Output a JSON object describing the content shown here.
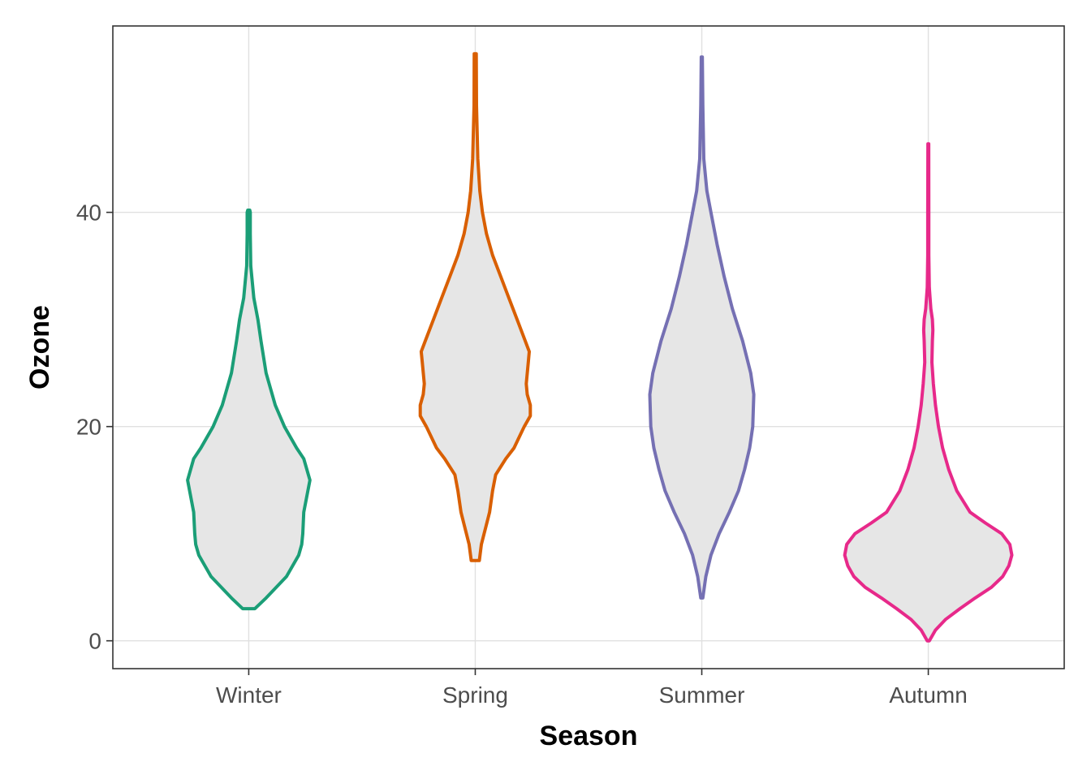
{
  "chart_data": {
    "type": "violin",
    "title": "",
    "xlabel": "Season",
    "ylabel": "Ozone",
    "categories": [
      "Winter",
      "Spring",
      "Summer",
      "Autumn"
    ],
    "ylim": [
      -2.6,
      57.4
    ],
    "yticks": [
      0,
      20,
      40
    ],
    "ytick_labels": [
      "0",
      "20",
      "40"
    ],
    "fill_color": "#e6e6e6",
    "series": [
      {
        "name": "Winter",
        "color": "#1b9e77",
        "min": 3,
        "max": 40.2,
        "profile": [
          [
            3,
            0.06
          ],
          [
            4,
            0.17
          ],
          [
            6,
            0.37
          ],
          [
            8,
            0.49
          ],
          [
            9,
            0.52
          ],
          [
            10,
            0.53
          ],
          [
            12,
            0.54
          ],
          [
            15,
            0.6
          ],
          [
            17,
            0.54
          ],
          [
            18,
            0.47
          ],
          [
            20,
            0.35
          ],
          [
            22,
            0.26
          ],
          [
            25,
            0.17
          ],
          [
            28,
            0.12
          ],
          [
            30,
            0.09
          ],
          [
            32,
            0.05
          ],
          [
            35,
            0.02
          ],
          [
            38,
            0.015
          ],
          [
            40,
            0.015
          ],
          [
            40.2,
            0.01
          ]
        ]
      },
      {
        "name": "Spring",
        "color": "#d95f02",
        "min": 7.5,
        "max": 54.8,
        "profile": [
          [
            7.5,
            0.04
          ],
          [
            9,
            0.06
          ],
          [
            12,
            0.14
          ],
          [
            14,
            0.17
          ],
          [
            15.5,
            0.2
          ],
          [
            17,
            0.3
          ],
          [
            18,
            0.38
          ],
          [
            20,
            0.48
          ],
          [
            21,
            0.54
          ],
          [
            22,
            0.54
          ],
          [
            23,
            0.51
          ],
          [
            24,
            0.5
          ],
          [
            26,
            0.52
          ],
          [
            27,
            0.53
          ],
          [
            28,
            0.49
          ],
          [
            30,
            0.41
          ],
          [
            32,
            0.33
          ],
          [
            34,
            0.25
          ],
          [
            36,
            0.17
          ],
          [
            38,
            0.11
          ],
          [
            40,
            0.07
          ],
          [
            42,
            0.045
          ],
          [
            45,
            0.025
          ],
          [
            50,
            0.012
          ],
          [
            54.8,
            0.01
          ]
        ]
      },
      {
        "name": "Summer",
        "color": "#7570b3",
        "min": 4,
        "max": 54.5,
        "profile": [
          [
            4,
            0.01
          ],
          [
            6,
            0.04
          ],
          [
            8,
            0.09
          ],
          [
            10,
            0.17
          ],
          [
            12,
            0.27
          ],
          [
            14,
            0.36
          ],
          [
            16,
            0.42
          ],
          [
            18,
            0.47
          ],
          [
            20,
            0.5
          ],
          [
            23,
            0.51
          ],
          [
            25,
            0.48
          ],
          [
            28,
            0.4
          ],
          [
            31,
            0.3
          ],
          [
            34,
            0.22
          ],
          [
            37,
            0.15
          ],
          [
            40,
            0.09
          ],
          [
            42,
            0.05
          ],
          [
            45,
            0.02
          ],
          [
            50,
            0.01
          ],
          [
            54.5,
            0.005
          ]
        ]
      },
      {
        "name": "Autumn",
        "color": "#e7298a",
        "min": 0,
        "max": 46.4,
        "profile": [
          [
            0,
            0.01
          ],
          [
            1,
            0.07
          ],
          [
            2,
            0.17
          ],
          [
            3,
            0.31
          ],
          [
            4,
            0.46
          ],
          [
            5,
            0.62
          ],
          [
            6,
            0.73
          ],
          [
            7,
            0.79
          ],
          [
            8,
            0.82
          ],
          [
            9,
            0.8
          ],
          [
            10,
            0.72
          ],
          [
            11,
            0.56
          ],
          [
            12,
            0.41
          ],
          [
            14,
            0.28
          ],
          [
            16,
            0.2
          ],
          [
            18,
            0.14
          ],
          [
            20,
            0.1
          ],
          [
            22,
            0.07
          ],
          [
            24,
            0.05
          ],
          [
            26,
            0.035
          ],
          [
            28,
            0.04
          ],
          [
            29,
            0.045
          ],
          [
            30,
            0.04
          ],
          [
            31,
            0.025
          ],
          [
            33,
            0.01
          ],
          [
            36,
            0.005
          ],
          [
            40,
            0.005
          ],
          [
            46.4,
            0.004
          ]
        ]
      }
    ]
  }
}
